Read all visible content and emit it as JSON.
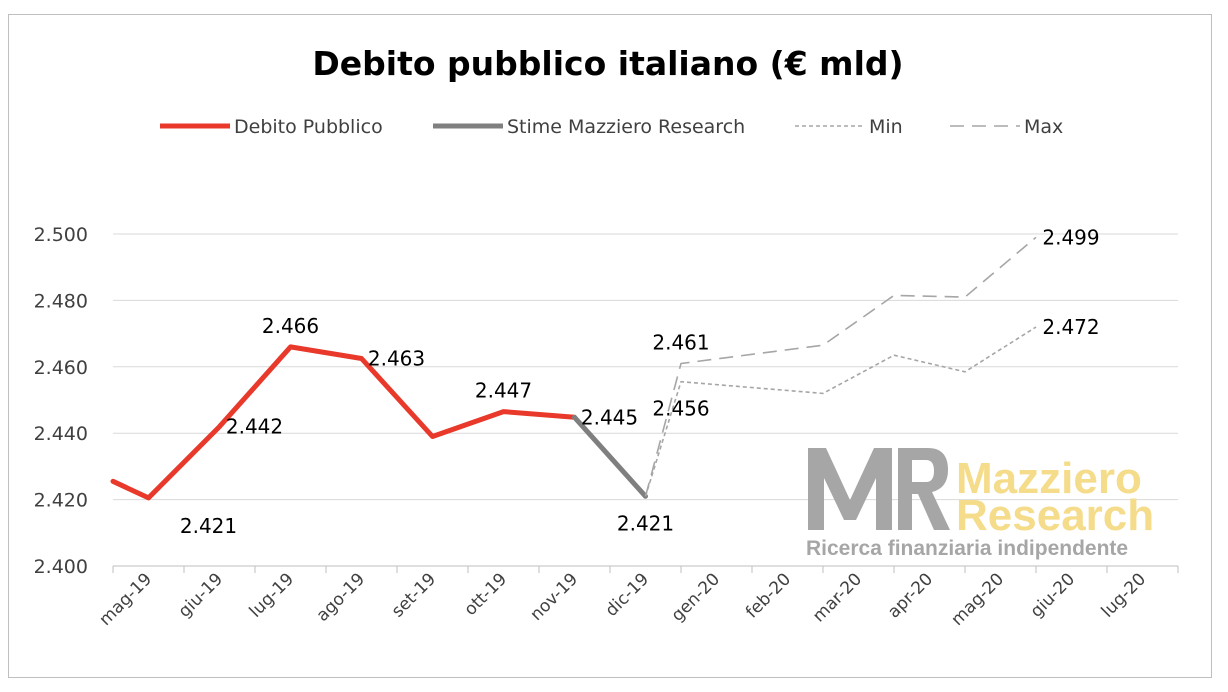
{
  "chart_data": {
    "type": "line",
    "title": "Debito pubblico italiano (€ mld)",
    "categories": [
      "mag-19",
      "giu-19",
      "lug-19",
      "ago-19",
      "set-19",
      "ott-19",
      "nov-19",
      "dic-19",
      "gen-20",
      "feb-20",
      "mar-20",
      "apr-20",
      "mag-20",
      "giu-20",
      "lug-20"
    ],
    "ylim": [
      2400,
      2500
    ],
    "yticks": [
      "2.400",
      "2.420",
      "2.440",
      "2.460",
      "2.480",
      "2.500"
    ],
    "grid": true,
    "legend": "top",
    "series": [
      {
        "name": "Debito Pubblico",
        "color": "#e8392b",
        "style": "solid-thick",
        "points": [
          [
            -0.5,
            2425.5
          ],
          [
            0,
            2420.5
          ],
          [
            1,
            2442
          ],
          [
            2,
            2466
          ],
          [
            3,
            2462.5
          ],
          [
            4,
            2439
          ],
          [
            5,
            2446.5
          ],
          [
            6,
            2444.8
          ]
        ]
      },
      {
        "name": "Stime Mazziero Research",
        "color": "#7f7f7f",
        "style": "solid-thick",
        "points": [
          [
            6,
            2444.8
          ],
          [
            7,
            2421
          ]
        ]
      },
      {
        "name": "Min",
        "color": "#a6a6a6",
        "style": "dotted",
        "points": [
          [
            7,
            2421
          ],
          [
            7.5,
            2455.5
          ],
          [
            9.5,
            2452
          ],
          [
            10.5,
            2463.5
          ],
          [
            11.5,
            2458.5
          ],
          [
            12.5,
            2472
          ]
        ]
      },
      {
        "name": "Max",
        "color": "#a6a6a6",
        "style": "dashed",
        "points": [
          [
            7,
            2421
          ],
          [
            7.5,
            2461
          ],
          [
            9.5,
            2466.5
          ],
          [
            10.5,
            2481.5
          ],
          [
            11.5,
            2481
          ],
          [
            12.5,
            2499
          ]
        ]
      }
    ],
    "data_labels": [
      {
        "text": "2.421",
        "x": 0,
        "y": 2420.5,
        "pos": "below-right"
      },
      {
        "text": "2.442",
        "x": 1,
        "y": 2442,
        "pos": "right"
      },
      {
        "text": "2.466",
        "x": 2,
        "y": 2466,
        "pos": "above"
      },
      {
        "text": "2.463",
        "x": 3,
        "y": 2462.5,
        "pos": "right"
      },
      {
        "text": "2.447",
        "x": 5,
        "y": 2446.5,
        "pos": "above"
      },
      {
        "text": "2.445",
        "x": 6,
        "y": 2444.8,
        "pos": "right"
      },
      {
        "text": "2.421",
        "x": 7,
        "y": 2421,
        "pos": "below"
      },
      {
        "text": "2.461",
        "x": 7.5,
        "y": 2461,
        "pos": "above"
      },
      {
        "text": "2.456",
        "x": 7.5,
        "y": 2455.5,
        "pos": "below"
      },
      {
        "text": "2.499",
        "x": 12.5,
        "y": 2499,
        "pos": "right"
      },
      {
        "text": "2.472",
        "x": 12.5,
        "y": 2472,
        "pos": "right"
      }
    ]
  },
  "watermark": {
    "logo": "MR",
    "line1": "Mazziero",
    "line2": "Research",
    "tagline": "Ricerca finanziaria indipendente"
  }
}
